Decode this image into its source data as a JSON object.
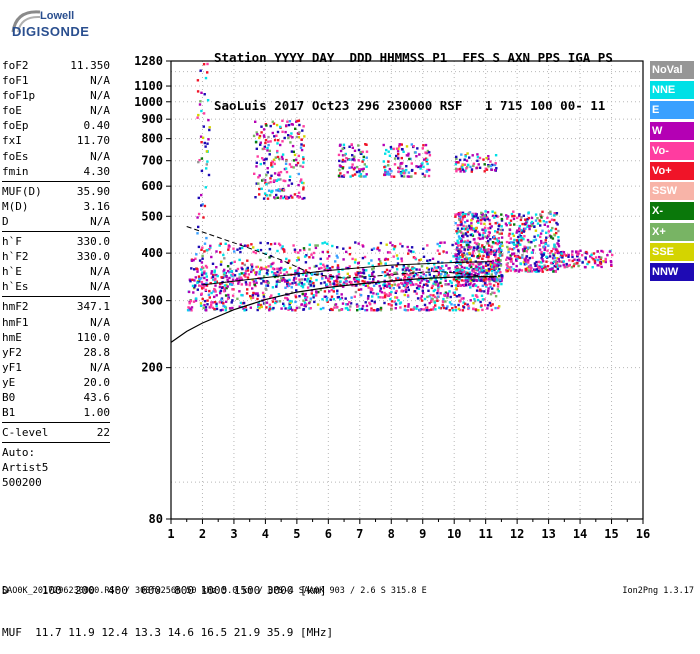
{
  "logo": {
    "line1": "Lowell",
    "line2": "DIGISONDE"
  },
  "header": {
    "line1": "Station YYYY DAY  DDD HHMMSS P1  FFS S AXN PPS IGA PS",
    "line2": "SaoLuis 2017 Oct23 296 230000 RSF   1 715 100 00- 11"
  },
  "params": {
    "group1": [
      {
        "label": "foF2",
        "value": "11.350"
      },
      {
        "label": "foF1",
        "value": "N/A"
      },
      {
        "label": "foF1p",
        "value": "N/A"
      },
      {
        "label": "foE",
        "value": "N/A"
      },
      {
        "label": "foEp",
        "value": "0.40"
      },
      {
        "label": "fxI",
        "value": "11.70"
      },
      {
        "label": "foEs",
        "value": "N/A"
      },
      {
        "label": "fmin",
        "value": "4.30"
      }
    ],
    "group2": [
      {
        "label": "MUF(D)",
        "value": "35.90"
      },
      {
        "label": "M(D)",
        "value": "3.16"
      },
      {
        "label": "D",
        "value": "N/A"
      }
    ],
    "group3": [
      {
        "label": "h`F",
        "value": "330.0"
      },
      {
        "label": "h`F2",
        "value": "330.0"
      },
      {
        "label": "h`E",
        "value": "N/A"
      },
      {
        "label": "h`Es",
        "value": "N/A"
      }
    ],
    "group4": [
      {
        "label": "hmF2",
        "value": "347.1"
      },
      {
        "label": "hmF1",
        "value": "N/A"
      },
      {
        "label": "hmE",
        "value": "110.0"
      },
      {
        "label": "yF2",
        "value": "28.8"
      },
      {
        "label": "yF1",
        "value": "N/A"
      },
      {
        "label": "yE",
        "value": "20.0"
      },
      {
        "label": "B0",
        "value": "43.6"
      },
      {
        "label": "B1",
        "value": "1.00"
      }
    ],
    "group5": [
      {
        "label": "C-level",
        "value": "22"
      }
    ],
    "autoscaling": [
      "Auto:",
      "Artist5",
      "500200"
    ]
  },
  "legend": [
    {
      "label": "NoVal",
      "bg": "#969696",
      "fg": "#ffffff"
    },
    {
      "label": "NNE",
      "bg": "#00e0e6",
      "fg": "#ffffff"
    },
    {
      "label": "E",
      "bg": "#3aa0ff",
      "fg": "#ffffff"
    },
    {
      "label": "W",
      "bg": "#b400b4",
      "fg": "#ffffff"
    },
    {
      "label": "Vo-",
      "bg": "#ff3ca0",
      "fg": "#ffffff"
    },
    {
      "label": "Vo+",
      "bg": "#f01428",
      "fg": "#ffffff"
    },
    {
      "label": "SSW",
      "bg": "#f8b4a8",
      "fg": "#ffffff"
    },
    {
      "label": "X-",
      "bg": "#0a780a",
      "fg": "#ffffff"
    },
    {
      "label": "X+",
      "bg": "#78b464",
      "fg": "#ffffff"
    },
    {
      "label": "SSE",
      "bg": "#d4d400",
      "fg": "#ffffff"
    },
    {
      "label": "NNW",
      "bg": "#1e0ab4",
      "fg": "#ffffff"
    }
  ],
  "muf_table": {
    "line1": "D     100  200  400  600  800 1000 1500 3000 [km]",
    "line2": "MUF  11.7 11.9 12.4 13.3 14.6 16.5 21.9 35.9 [MHz]"
  },
  "footer": {
    "left": "SAO0K_2017296230000.RSF / 300fx256h 50 kHz 5.0 km / DPS-4 SAA0K 903 / 2.6 S 315.8 E",
    "right": "Ion2Png 1.3.17"
  },
  "chart_data": {
    "type": "scatter",
    "title": "",
    "xlabel": "",
    "ylabel": "",
    "xlim": [
      1,
      16
    ],
    "ylim": [
      80,
      1280
    ],
    "x_ticks": [
      1,
      2,
      3,
      4,
      5,
      6,
      7,
      8,
      9,
      10,
      11,
      12,
      13,
      14,
      15,
      16
    ],
    "y_ticks": [
      80,
      200,
      300,
      400,
      500,
      600,
      700,
      800,
      900,
      1000,
      1100,
      1280
    ],
    "grid": true,
    "colors": {
      "NNE": "#00e0e6",
      "E": "#3aa0ff",
      "W": "#b400b4",
      "Vo-": "#ff3ca0",
      "Vo+": "#f01428",
      "X-": "#0a780a",
      "X+": "#78b464",
      "SSE": "#d4d400",
      "NNW": "#1e0ab4",
      "NoVal": "#969696"
    },
    "clusters": [
      {
        "name": "F2 trace low",
        "x": [
          1.5,
          11.4
        ],
        "y": [
          285,
          370
        ],
        "n": 900
      },
      {
        "name": "F2 trace mid",
        "x": [
          1.6,
          11.5
        ],
        "y": [
          330,
          430
        ],
        "n": 600
      },
      {
        "name": "F2 trace high",
        "x": [
          10,
          11.5
        ],
        "y": [
          340,
          520
        ],
        "n": 500
      },
      {
        "name": "extension",
        "x": [
          11.6,
          13.3
        ],
        "y": [
          360,
          520
        ],
        "n": 350
      },
      {
        "name": "tail",
        "x": [
          13,
          15
        ],
        "y": [
          370,
          410
        ],
        "n": 120
      },
      {
        "name": "2hop 4-5 MHz",
        "x": [
          3.6,
          5.2
        ],
        "y": [
          560,
          900
        ],
        "n": 220
      },
      {
        "name": "2hop 6-7 MHz",
        "x": [
          6.3,
          7.2
        ],
        "y": [
          640,
          780
        ],
        "n": 80
      },
      {
        "name": "2hop 8-9 MHz",
        "x": [
          7.7,
          9.2
        ],
        "y": [
          640,
          780
        ],
        "n": 120
      },
      {
        "name": "2hop 10-11 MHz",
        "x": [
          10,
          11.3
        ],
        "y": [
          660,
          740
        ],
        "n": 70
      },
      {
        "name": "spread 2 MHz",
        "x": [
          1.8,
          2.2
        ],
        "y": [
          300,
          1280
        ],
        "n": 60
      }
    ],
    "lines": [
      {
        "name": "profile",
        "x": [
          1,
          1.5,
          2,
          3,
          4,
          5,
          6,
          7,
          8,
          9,
          10,
          11,
          11.35
        ],
        "y": [
          233,
          249,
          262,
          284,
          302,
          316,
          325,
          332,
          338,
          343,
          346,
          347,
          347
        ]
      },
      {
        "name": "trace fit",
        "x": [
          1.5,
          2.5,
          3.5,
          4.5,
          5,
          5.5,
          6.5,
          7.5,
          8.5,
          9.5,
          10.5,
          11,
          11.35
        ],
        "y": [
          470,
          440,
          412,
          384,
          368,
          352,
          344,
          348,
          354,
          358,
          352,
          346,
          346
        ]
      },
      {
        "name": "trace fit 2",
        "x": [
          2,
          4,
          6,
          8,
          10,
          11.2
        ],
        "y": [
          330,
          345,
          360,
          372,
          378,
          380
        ]
      }
    ]
  }
}
